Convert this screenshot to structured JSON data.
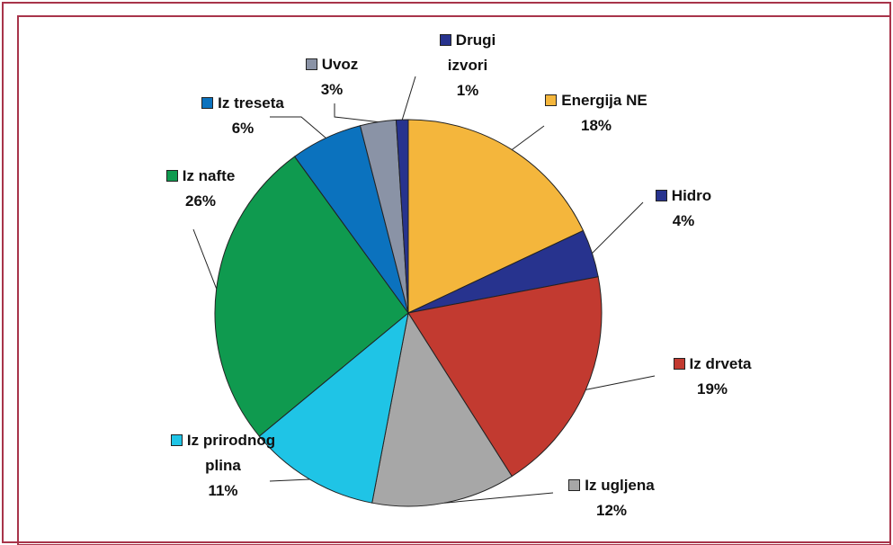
{
  "chart_data": {
    "type": "pie",
    "categories": [
      "Energija NE",
      "Hidro",
      "Iz drveta",
      "Iz ugljena",
      "Iz prirodnog plina",
      "Iz nafte",
      "Iz treseta",
      "Uvoz",
      "Drugi izvori"
    ],
    "values": [
      18,
      4,
      19,
      12,
      11,
      26,
      6,
      3,
      1
    ],
    "value_labels": [
      "18%",
      "4%",
      "19%",
      "12%",
      "11%",
      "26%",
      "6%",
      "3%",
      "1%"
    ],
    "colors": [
      "#f4b63c",
      "#27338e",
      "#c23a30",
      "#a7a7a7",
      "#1fc4e6",
      "#0f9a4f",
      "#0b72be",
      "#8a93a6",
      "#27338e"
    ]
  }
}
